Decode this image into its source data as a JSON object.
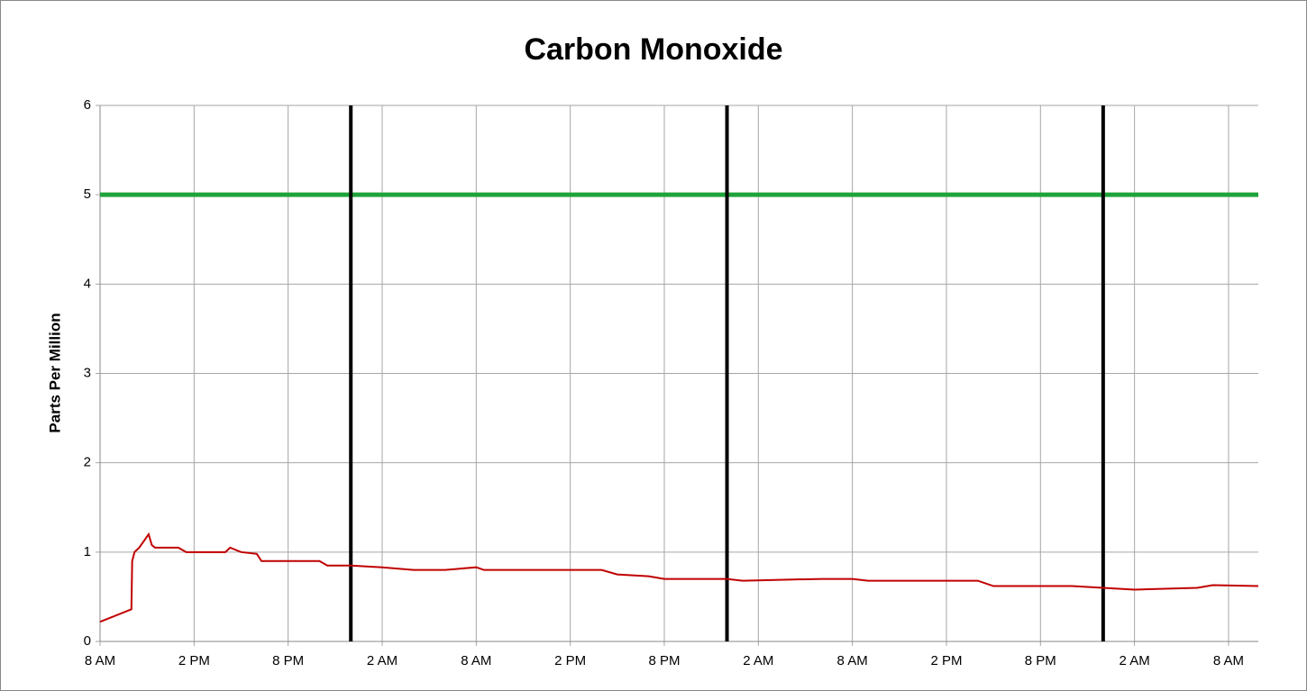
{
  "chart_data": {
    "type": "line",
    "title": "Carbon Monoxide",
    "ylabel": "Parts Per Million",
    "xlim": [
      0,
      73.9
    ],
    "xticks": [
      {
        "value": 0,
        "label": "8 AM"
      },
      {
        "value": 6,
        "label": "2 PM"
      },
      {
        "value": 12,
        "label": "8 PM"
      },
      {
        "value": 18,
        "label": "2 AM"
      },
      {
        "value": 24,
        "label": "8 AM"
      },
      {
        "value": 30,
        "label": "2 PM"
      },
      {
        "value": 36,
        "label": "8 PM"
      },
      {
        "value": 42,
        "label": "2 AM"
      },
      {
        "value": 48,
        "label": "8 AM"
      },
      {
        "value": 54,
        "label": "2 PM"
      },
      {
        "value": 60,
        "label": "8 PM"
      },
      {
        "value": 66,
        "label": "2 AM"
      },
      {
        "value": 72,
        "label": "8 AM"
      }
    ],
    "ylim": [
      0,
      6
    ],
    "yticks": [
      0,
      1,
      2,
      3,
      4,
      5,
      6
    ],
    "grid": true,
    "hlines": [
      {
        "value": 5,
        "color": "#1fa33a"
      }
    ],
    "vlines": [
      {
        "value": 16,
        "color": "#000000"
      },
      {
        "value": 40,
        "color": "#000000"
      },
      {
        "value": 64,
        "color": "#000000"
      }
    ],
    "series": [
      {
        "color": "#c00000",
        "x": [
          0,
          2,
          2.05,
          2.2,
          2.5,
          3.1,
          3.3,
          3.5,
          5,
          5.5,
          8,
          8.3,
          9,
          10,
          10.3,
          14,
          14.5,
          16,
          18,
          20,
          22,
          24,
          24.5,
          30,
          32,
          33,
          35,
          36,
          40,
          41,
          46,
          48,
          49,
          56,
          57,
          62,
          64,
          66,
          70,
          71,
          73.9
        ],
        "values": [
          0.22,
          0.36,
          0.9,
          1.0,
          1.05,
          1.2,
          1.08,
          1.05,
          1.05,
          1.0,
          1.0,
          1.05,
          1.0,
          0.98,
          0.9,
          0.9,
          0.85,
          0.85,
          0.83,
          0.8,
          0.8,
          0.83,
          0.8,
          0.8,
          0.8,
          0.75,
          0.73,
          0.7,
          0.7,
          0.68,
          0.7,
          0.7,
          0.68,
          0.68,
          0.62,
          0.62,
          0.6,
          0.58,
          0.6,
          0.63,
          0.62
        ]
      }
    ]
  }
}
